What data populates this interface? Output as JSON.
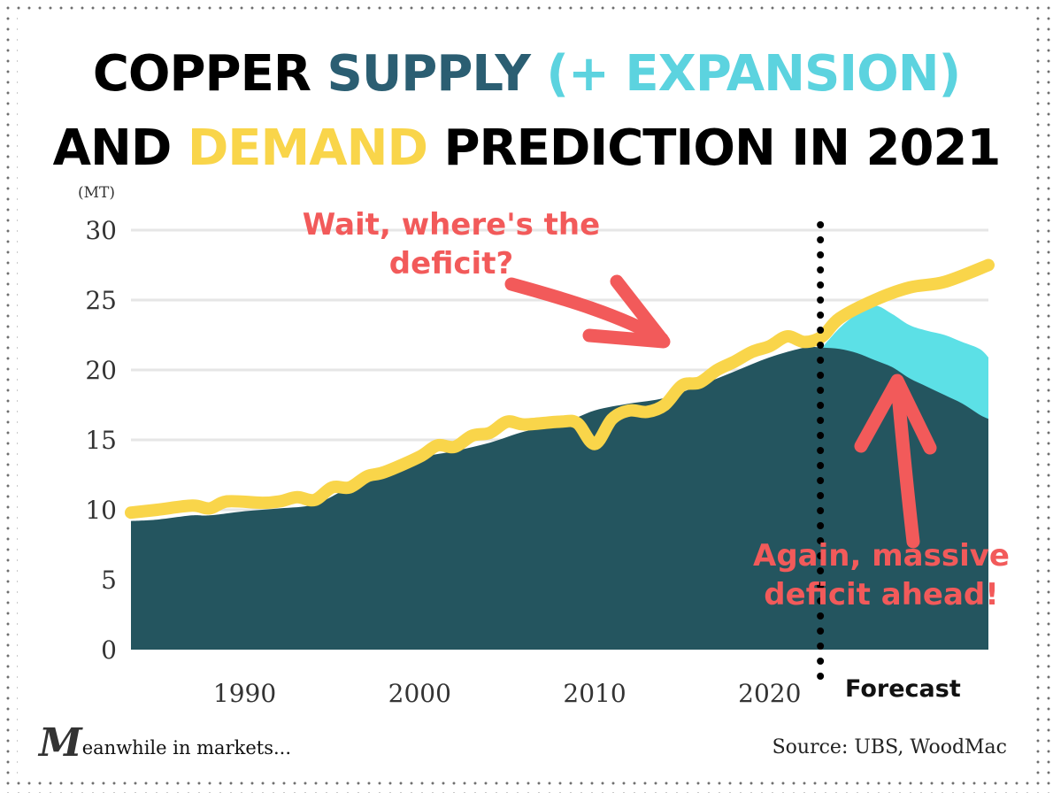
{
  "title": {
    "line1_part1": "COPPER ",
    "line1_part2": "SUPPLY ",
    "line1_part3": "(+ EXPANSION)",
    "line2_part1": "AND ",
    "line2_part2": "DEMAND",
    "line2_part3": " PREDICTION IN 2021"
  },
  "colors": {
    "supply": "#24555f",
    "expansion": "#5ce0e6",
    "demand": "#f9d54a",
    "annotation": "#f25a5a",
    "gridline": "#e6e6e6",
    "forecast_divider": "#000000"
  },
  "annotations": {
    "top_line1": "Wait, where's the",
    "top_line2": "deficit?",
    "bottom_line1": "Again, massive",
    "bottom_line2": "deficit ahead!"
  },
  "forecast_label": "Forecast",
  "logo": {
    "initial": "M",
    "rest": "eanwhile in markets..."
  },
  "source": "Source: UBS, WoodMac",
  "chart_data": {
    "type": "area",
    "title": "COPPER SUPPLY (+ EXPANSION) AND DEMAND PREDICTION IN 2021",
    "ylabel": "(MT)",
    "xlabel": "",
    "ylim": [
      0,
      30
    ],
    "xlim": [
      1983.5,
      2032.5
    ],
    "grid": true,
    "y_ticks": [
      30,
      25,
      20,
      15,
      10,
      5,
      0
    ],
    "x_ticks": [
      1990,
      2000,
      2010,
      2020
    ],
    "forecast_start": 2023,
    "series": [
      {
        "name": "Supply",
        "kind": "area",
        "x": [
          1983.5,
          1985,
          1987,
          1988,
          1990,
          1992,
          1994,
          1996,
          1998,
          2000,
          2002,
          2004,
          2006,
          2008,
          2010,
          2012,
          2014,
          2016,
          2018,
          2020,
          2022,
          2023,
          2024,
          2025,
          2026,
          2027,
          2028,
          2029,
          2030,
          2031,
          2032,
          2032.5
        ],
        "values": [
          9.2,
          9.3,
          9.6,
          9.6,
          9.9,
          10.1,
          10.4,
          11.6,
          12.5,
          13.7,
          14.2,
          14.8,
          15.6,
          16.1,
          17.1,
          17.6,
          18.0,
          18.9,
          19.9,
          20.9,
          21.6,
          21.6,
          21.5,
          21.2,
          20.7,
          20.2,
          19.4,
          18.8,
          18.2,
          17.6,
          16.8,
          16.5
        ]
      },
      {
        "name": "Supply (+ Expansion)",
        "kind": "area",
        "x": [
          2023,
          2024,
          2025,
          2026,
          2027,
          2028,
          2029,
          2030,
          2031,
          2032,
          2032.5
        ],
        "values": [
          21.6,
          23.0,
          24.0,
          24.6,
          24.0,
          23.2,
          22.8,
          22.5,
          22.0,
          21.5,
          20.9
        ]
      },
      {
        "name": "Demand",
        "kind": "line",
        "x": [
          1983.5,
          1985,
          1987,
          1988,
          1989,
          1991,
          1992,
          1993,
          1994,
          1995,
          1996,
          1997,
          1998,
          2000,
          2001,
          2002,
          2003,
          2004,
          2005,
          2006,
          2008,
          2009,
          2010,
          2011,
          2012,
          2013,
          2014,
          2015,
          2016,
          2017,
          2018,
          2019,
          2020,
          2021,
          2022,
          2023,
          2024,
          2026,
          2028,
          2030,
          2032.5
        ],
        "values": [
          9.8,
          10.0,
          10.3,
          10.1,
          10.6,
          10.5,
          10.6,
          10.9,
          10.7,
          11.6,
          11.6,
          12.4,
          12.7,
          13.8,
          14.6,
          14.5,
          15.3,
          15.5,
          16.3,
          16.1,
          16.3,
          16.2,
          14.7,
          16.5,
          17.1,
          17.0,
          17.5,
          18.9,
          19.1,
          20.0,
          20.6,
          21.3,
          21.7,
          22.4,
          22.0,
          22.4,
          23.7,
          25.0,
          25.9,
          26.3,
          27.5
        ]
      }
    ]
  }
}
